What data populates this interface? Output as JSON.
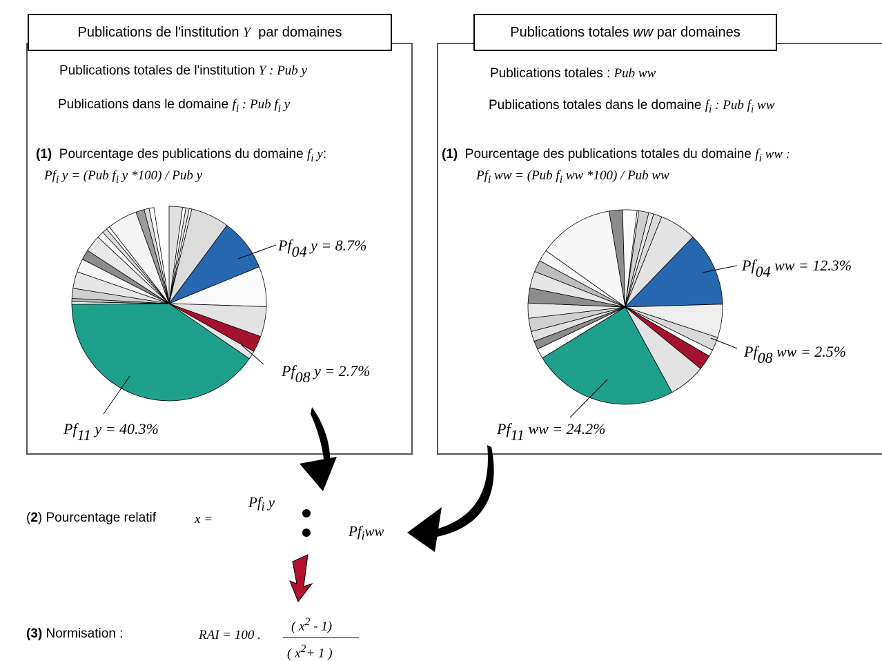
{
  "left": {
    "tab": [
      "Publications de l'institution",
      "Y",
      "par domaines"
    ],
    "line1": [
      "Publications totales de l'institution",
      "Y : Pub y"
    ],
    "line2": [
      "Publications dans le domaine",
      "f",
      "i",
      ": Pub",
      "f",
      "i",
      "y"
    ],
    "pct_num": "(1)",
    "pct_text": "Pourcentage des publications du domaine",
    "pct_var": [
      "f",
      "i",
      "y",
      ":"
    ],
    "formula": [
      "Pf",
      "i",
      "y = (Pub",
      "f",
      "i",
      "y *100) / Pub y"
    ],
    "labels": {
      "f04": [
        "Pf",
        "04",
        "y = 8.7%"
      ],
      "f08": [
        "Pf",
        "08",
        "y = 2.7%"
      ],
      "f11": [
        "Pf",
        "11",
        "y = 40.3%"
      ]
    }
  },
  "right": {
    "tab": [
      "Publications totales",
      "ww",
      "par domaines"
    ],
    "line1": [
      "Publications totales :",
      "Pub ww"
    ],
    "line2": [
      "Publications totales dans le domaine",
      "f",
      "i",
      ": Pub",
      "f",
      "i",
      "ww"
    ],
    "pct_num": "(1)",
    "pct_text": "Pourcentage des publications totales du domaine",
    "pct_var": [
      "f",
      "i",
      "ww :"
    ],
    "formula": [
      "Pf",
      "i",
      "ww = (Pub",
      "f",
      "i",
      "ww *100) / Pub ww"
    ],
    "labels": {
      "f04": [
        "Pf",
        "04",
        "ww = 12.3%"
      ],
      "f08": [
        "Pf",
        "08",
        "ww = 2.5%"
      ],
      "f11": [
        "Pf",
        "11",
        "ww = 24.2%"
      ]
    }
  },
  "step2": {
    "label": [
      "(",
      "2",
      ") Pourcentage relatif"
    ],
    "x": "x =",
    "num": [
      "Pf",
      "i",
      "y"
    ],
    "den": [
      "Pf",
      "i",
      "ww"
    ]
  },
  "step3": {
    "label": [
      "(3)",
      "Normisation :"
    ],
    "rai": "RAI = 100 .",
    "num": [
      "( x",
      "2",
      "-  1)"
    ],
    "den": [
      "( x",
      "2",
      "+ 1 )"
    ]
  },
  "colors": {
    "blue": "#2868b0",
    "teal": "#1fa08a",
    "crimson": "#a3122e",
    "arrow_red": "#b3112e"
  }
}
